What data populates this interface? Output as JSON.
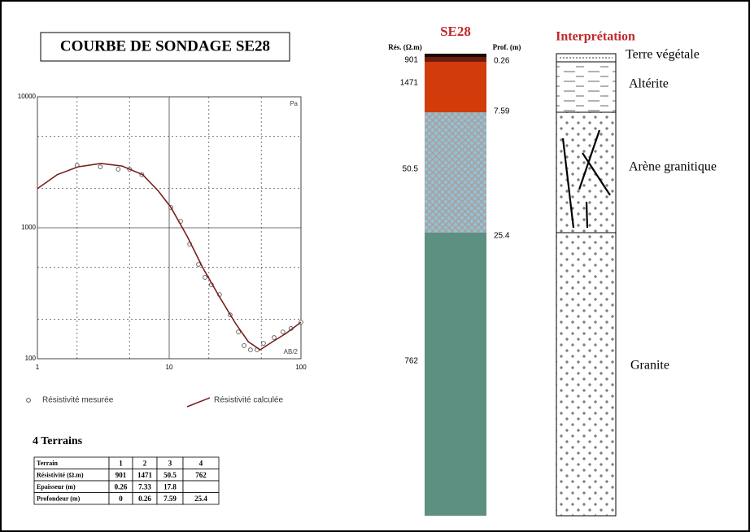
{
  "chart_data": {
    "type": "line",
    "title": "COURBE DE SONDAGE SE28",
    "x_label": "AB/2",
    "y_label": "Pa",
    "xlim": [
      1,
      100
    ],
    "ylim": [
      100,
      10000
    ],
    "xticks": [
      1,
      10,
      100
    ],
    "yticks": [
      100,
      1000,
      10000
    ],
    "x_minor_grid": [
      2,
      5,
      20,
      50
    ],
    "y_minor_grid": [
      200,
      500,
      2000,
      5000
    ],
    "log_x": true,
    "log_y": true,
    "grid": true,
    "series": [
      {
        "name": "Résistivité mesurée",
        "color": "#555555",
        "marker": "circle",
        "x": [
          2,
          3,
          4.1,
          5,
          6.2,
          10.3,
          12.2,
          14.3,
          16.7,
          18.7,
          20.9,
          24.1,
          29,
          33.5,
          37,
          41.4,
          46.4,
          52,
          62.5,
          73,
          84,
          100
        ],
        "values": [
          3000,
          2920,
          2800,
          2800,
          2540,
          1430,
          1120,
          750,
          525,
          418,
          367,
          309,
          216,
          160,
          126,
          117,
          117,
          131,
          145,
          160,
          170,
          190
        ]
      },
      {
        "name": "Résistivité calculée",
        "color": "#7a1f1f",
        "marker": "line",
        "x": [
          1,
          1.41,
          2.03,
          3.03,
          4.4,
          6.3,
          8.3,
          10.3,
          13.7,
          18.1,
          24.1,
          32,
          39.8,
          49,
          61,
          77,
          100
        ],
        "values": [
          1990,
          2540,
          2920,
          3100,
          2960,
          2540,
          1900,
          1430,
          860,
          490,
          296,
          185,
          135,
          117,
          135,
          156,
          190
        ]
      }
    ]
  },
  "table": {
    "title": "4 Terrains",
    "header": [
      "Terrain",
      "1",
      "2",
      "3",
      "4"
    ],
    "rows": [
      [
        "Résistivité (Ω.m)",
        "901",
        "1471",
        "50.5",
        "762"
      ],
      [
        "Epaisseur (m)",
        "0.26",
        "7.33",
        "17.8",
        null
      ],
      [
        "Profondeur (m)",
        "0",
        "0.26",
        "7.59",
        "25.4"
      ]
    ]
  },
  "log_column": {
    "title": "SE28",
    "res_label": "Rés. (Ω.m)",
    "depth_label": "Prof. (m)",
    "resistivities": [
      "901",
      "1471",
      "50.5",
      "762"
    ],
    "depths": [
      "0.26",
      "7.59",
      "25.4"
    ]
  },
  "interpretation": {
    "title": "Interprétation",
    "layers": [
      "Terre végétale",
      "Altérite",
      "Arène granitique",
      "Granite"
    ]
  }
}
